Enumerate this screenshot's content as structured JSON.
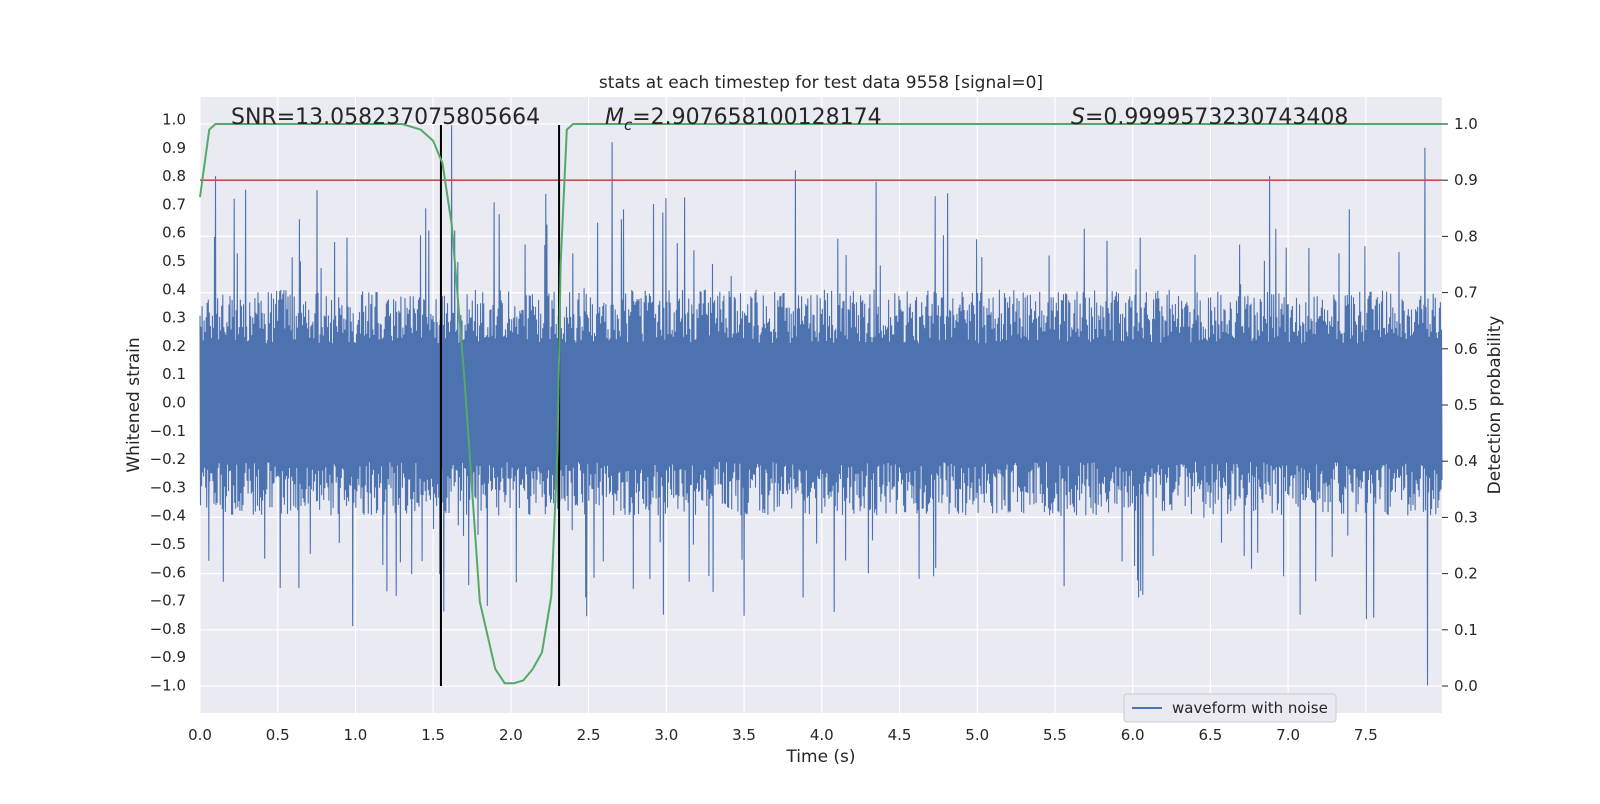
{
  "chart_data": {
    "type": "line",
    "title": "stats at each timestep for test data 9558 [signal=0]",
    "xlabel": "Time (s)",
    "ylabel_left": "Whitened strain",
    "ylabel_right": "Detection probability",
    "xlim": [
      0.0,
      7.99
    ],
    "ylim_left": [
      -1.1,
      1.1
    ],
    "ylim_right": [
      -0.05,
      1.05
    ],
    "xticks": [
      "0.0",
      "0.5",
      "1.0",
      "1.5",
      "2.0",
      "2.5",
      "3.0",
      "3.5",
      "4.0",
      "4.5",
      "5.0",
      "5.5",
      "6.0",
      "6.5",
      "7.0",
      "7.5"
    ],
    "yticks_left": [
      "1.0",
      "0.9",
      "0.8",
      "0.7",
      "0.6",
      "0.5",
      "0.4",
      "0.3",
      "0.2",
      "0.1",
      "0.0",
      "−0.1",
      "−0.2",
      "−0.3",
      "−0.4",
      "−0.5",
      "−0.6",
      "−0.7",
      "−0.8",
      "−0.9",
      "−1.0"
    ],
    "yticks_right": [
      "1.0",
      "0.9",
      "0.8",
      "0.7",
      "0.6",
      "0.5",
      "0.4",
      "0.3",
      "0.2",
      "0.1",
      "0.0"
    ],
    "grid": true,
    "legend": {
      "position": "lower-right",
      "entries": [
        "waveform with noise"
      ]
    },
    "annotations": {
      "snr": "SNR=13.058237075805664",
      "mc_symbol": "M",
      "mc_subscript": "c",
      "mc_value": "=2.907658100128174",
      "s_symbol": "S",
      "s_value": "=0.9999573230743408"
    },
    "threshold_probability": 0.9,
    "vertical_markers": [
      1.55,
      2.31
    ],
    "waveform_series": {
      "name": "waveform with noise",
      "description_range": [
        -1.0,
        1.0
      ],
      "typical_envelope": 0.38,
      "peak_spikes": [
        {
          "x": 0.1,
          "y": 0.8
        },
        {
          "x": 0.22,
          "y": 0.72
        },
        {
          "x": 0.75,
          "y": 0.75
        },
        {
          "x": 1.62,
          "y": 0.98
        },
        {
          "x": 2.65,
          "y": 0.92
        },
        {
          "x": 3.83,
          "y": 0.82
        },
        {
          "x": 4.35,
          "y": 0.78
        },
        {
          "x": 6.88,
          "y": 0.8
        },
        {
          "x": 7.88,
          "y": 0.9
        },
        {
          "x": 7.9,
          "y": -1.0
        },
        {
          "x": 0.98,
          "y": -0.79
        },
        {
          "x": 2.98,
          "y": -0.75
        },
        {
          "x": 4.08,
          "y": -0.74
        },
        {
          "x": 7.55,
          "y": -0.76
        },
        {
          "x": 7.08,
          "y": -0.75
        }
      ]
    },
    "probability_series": {
      "name": "detection probability",
      "x": [
        0.0,
        0.06,
        0.1,
        0.2,
        1.3,
        1.42,
        1.5,
        1.56,
        1.62,
        1.7,
        1.8,
        1.9,
        1.96,
        2.02,
        2.08,
        2.14,
        2.2,
        2.26,
        2.3,
        2.32,
        2.36,
        2.4,
        2.5,
        7.99
      ],
      "y": [
        0.87,
        0.99,
        1.0,
        1.0,
        1.0,
        0.99,
        0.97,
        0.93,
        0.82,
        0.55,
        0.15,
        0.03,
        0.005,
        0.005,
        0.01,
        0.03,
        0.06,
        0.16,
        0.42,
        0.75,
        0.99,
        1.0,
        1.0,
        1.0
      ]
    }
  }
}
